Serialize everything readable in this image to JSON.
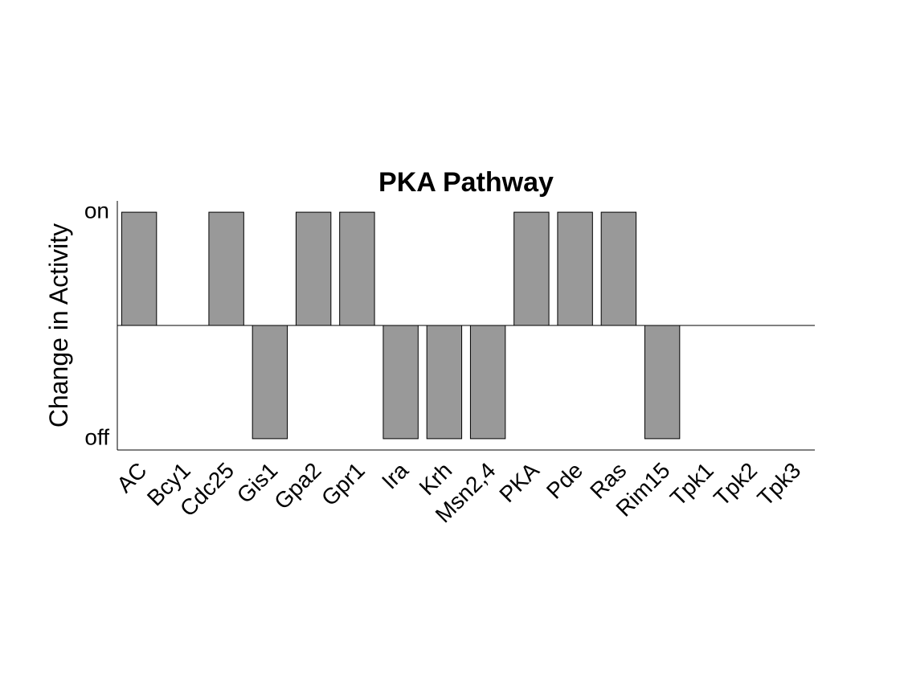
{
  "chart_data": {
    "type": "bar",
    "title": "PKA Pathway",
    "xlabel": "",
    "ylabel": "Change in Activity",
    "yticks": [
      {
        "value": 1,
        "label": "on"
      },
      {
        "value": -1,
        "label": "off"
      }
    ],
    "ylim": [
      -1.1,
      1.1
    ],
    "categories": [
      "AC",
      "Bcy1",
      "Cdc25",
      "Gis1",
      "Gpa2",
      "Gpr1",
      "Ira",
      "Krh",
      "Msn2,4",
      "PKA",
      "Pde",
      "Ras",
      "Rim15",
      "Tpk1",
      "Tpk2",
      "Tpk3"
    ],
    "values": [
      1,
      0,
      1,
      -1,
      1,
      1,
      -1,
      -1,
      -1,
      1,
      1,
      1,
      -1,
      0,
      0,
      0
    ],
    "colors": {
      "bar": "#999999",
      "edge": "#000000"
    },
    "grid": false
  }
}
